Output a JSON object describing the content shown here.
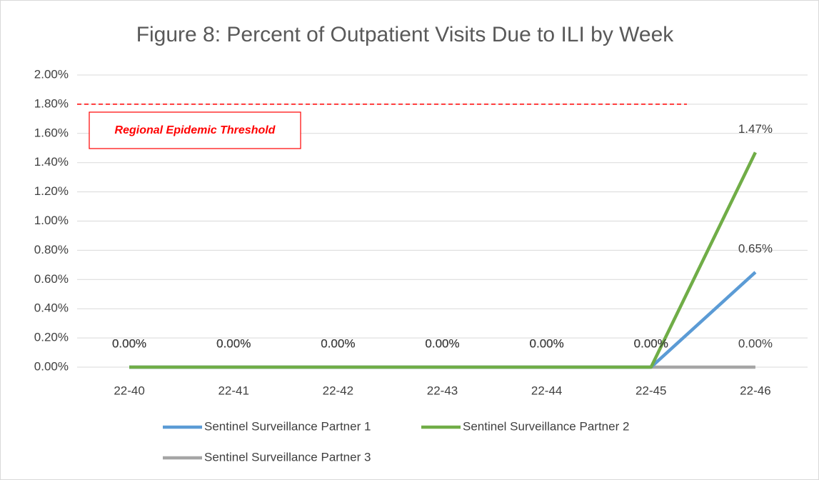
{
  "chart_data": {
    "type": "line",
    "title": "Figure 8: Percent of Outpatient Visits Due to ILI by Week",
    "categories": [
      "22-40",
      "22-41",
      "22-42",
      "22-43",
      "22-44",
      "22-45",
      "22-46"
    ],
    "series": [
      {
        "name": "Sentinel Surveillance Partner 1",
        "color": "#5b9bd5",
        "values": [
          0,
          0,
          0,
          0,
          0,
          0,
          0.65
        ],
        "value_labels": [
          "0.00%",
          "0.00%",
          "0.00%",
          "0.00%",
          "0.00%",
          "0.00%",
          "0.65%"
        ]
      },
      {
        "name": "Sentinel Surveillance Partner 2",
        "color": "#70ad47",
        "values": [
          0,
          0,
          0,
          0,
          0,
          0,
          1.47
        ],
        "value_labels": [
          "0.00%",
          "0.00%",
          "0.00%",
          "0.00%",
          "0.00%",
          "0.00%",
          "1.47%"
        ]
      },
      {
        "name": "Sentinel Surveillance Partner 3",
        "color": "#a5a5a5",
        "values": [
          0,
          0,
          0,
          0,
          0,
          0,
          0
        ],
        "value_labels": [
          "0.00%",
          "0.00%",
          "0.00%",
          "0.00%",
          "0.00%",
          "0.00%",
          "0.00%"
        ]
      }
    ],
    "threshold": {
      "value": 1.8,
      "label": "Regional Epidemic Threshold",
      "color": "#ff0000"
    },
    "ylim": [
      0,
      2.0
    ],
    "yticks": [
      {
        "value": 0,
        "label": "0.00%"
      },
      {
        "value": 0.2,
        "label": "0.20%"
      },
      {
        "value": 0.4,
        "label": "0.40%"
      },
      {
        "value": 0.6,
        "label": "0.60%"
      },
      {
        "value": 0.8,
        "label": "0.80%"
      },
      {
        "value": 1.0,
        "label": "1.00%"
      },
      {
        "value": 1.2,
        "label": "1.20%"
      },
      {
        "value": 1.4,
        "label": "1.40%"
      },
      {
        "value": 1.6,
        "label": "1.60%"
      },
      {
        "value": 1.8,
        "label": "1.80%"
      },
      {
        "value": 2.0,
        "label": "2.00%"
      }
    ],
    "grid": true,
    "legend": "bottom"
  }
}
